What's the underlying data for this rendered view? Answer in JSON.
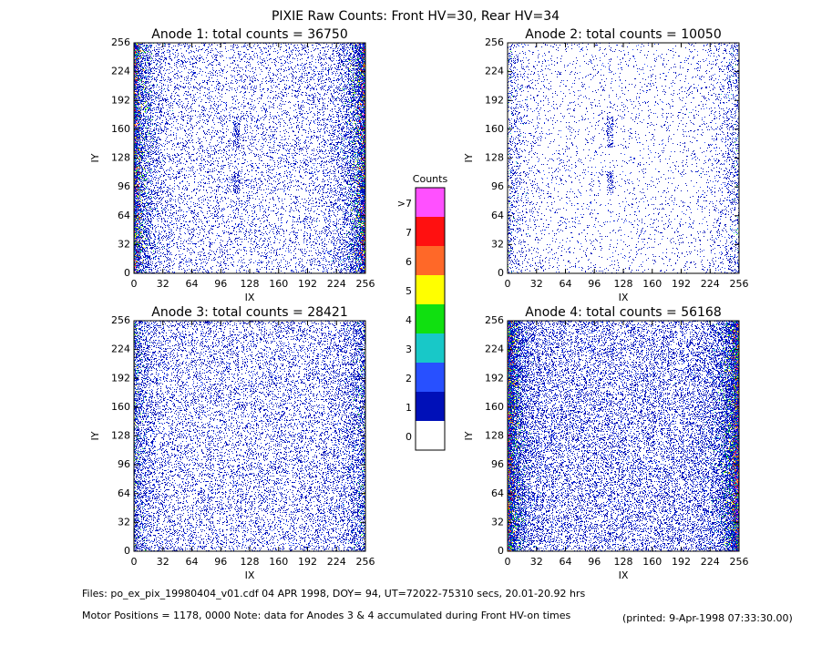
{
  "title": "PIXIE Raw Counts:  Front HV=30, Rear HV=34",
  "chart_data": [
    {
      "type": "heatmap",
      "title": "Anode 1: total counts = 36750",
      "xlabel": "IX",
      "ylabel": "IY",
      "xlim": [
        0,
        256
      ],
      "ylim": [
        0,
        256
      ],
      "xticks": [
        0,
        32,
        64,
        96,
        128,
        160,
        192,
        224,
        256
      ],
      "yticks": [
        0,
        32,
        64,
        96,
        128,
        160,
        192,
        224,
        256
      ]
    },
    {
      "type": "heatmap",
      "title": "Anode 2: total counts = 10050",
      "xlabel": "IX",
      "ylabel": "IY",
      "xlim": [
        0,
        256
      ],
      "ylim": [
        0,
        256
      ],
      "xticks": [
        0,
        32,
        64,
        96,
        128,
        160,
        192,
        224,
        256
      ],
      "yticks": [
        0,
        32,
        64,
        96,
        128,
        160,
        192,
        224,
        256
      ]
    },
    {
      "type": "heatmap",
      "title": "Anode 3: total counts = 28421",
      "xlabel": "IX",
      "ylabel": "IY",
      "xlim": [
        0,
        256
      ],
      "ylim": [
        0,
        256
      ],
      "xticks": [
        0,
        32,
        64,
        96,
        128,
        160,
        192,
        224,
        256
      ],
      "yticks": [
        0,
        32,
        64,
        96,
        128,
        160,
        192,
        224,
        256
      ]
    },
    {
      "type": "heatmap",
      "title": "Anode 4: total counts = 56168",
      "xlabel": "IX",
      "ylabel": "IY",
      "xlim": [
        0,
        256
      ],
      "ylim": [
        0,
        256
      ],
      "xticks": [
        0,
        32,
        64,
        96,
        128,
        160,
        192,
        224,
        256
      ],
      "yticks": [
        0,
        32,
        64,
        96,
        128,
        160,
        192,
        224,
        256
      ]
    }
  ],
  "colorbar": {
    "title": "Counts",
    "labels": [
      "0",
      "1",
      "2",
      "3",
      "4",
      "5",
      "6",
      "7",
      ">7"
    ],
    "colors": [
      "#ffffff",
      "#0010b8",
      "#2850ff",
      "#18c8c8",
      "#10e010",
      "#ffff00",
      "#ff6828",
      "#ff1010",
      "#ff50ff"
    ]
  },
  "footer": {
    "files": "Files: po_ex_pix_19980404_v01.cdf     04 APR 1998, DOY= 94, UT=72022-75310 secs, 20.01-20.92 hrs",
    "motor": "Motor Positions = 1178, 0000    Note: data for Anodes 3 & 4 accumulated during Front HV-on times",
    "printed": "(printed:  9-Apr-1998 07:33:30.00)"
  }
}
